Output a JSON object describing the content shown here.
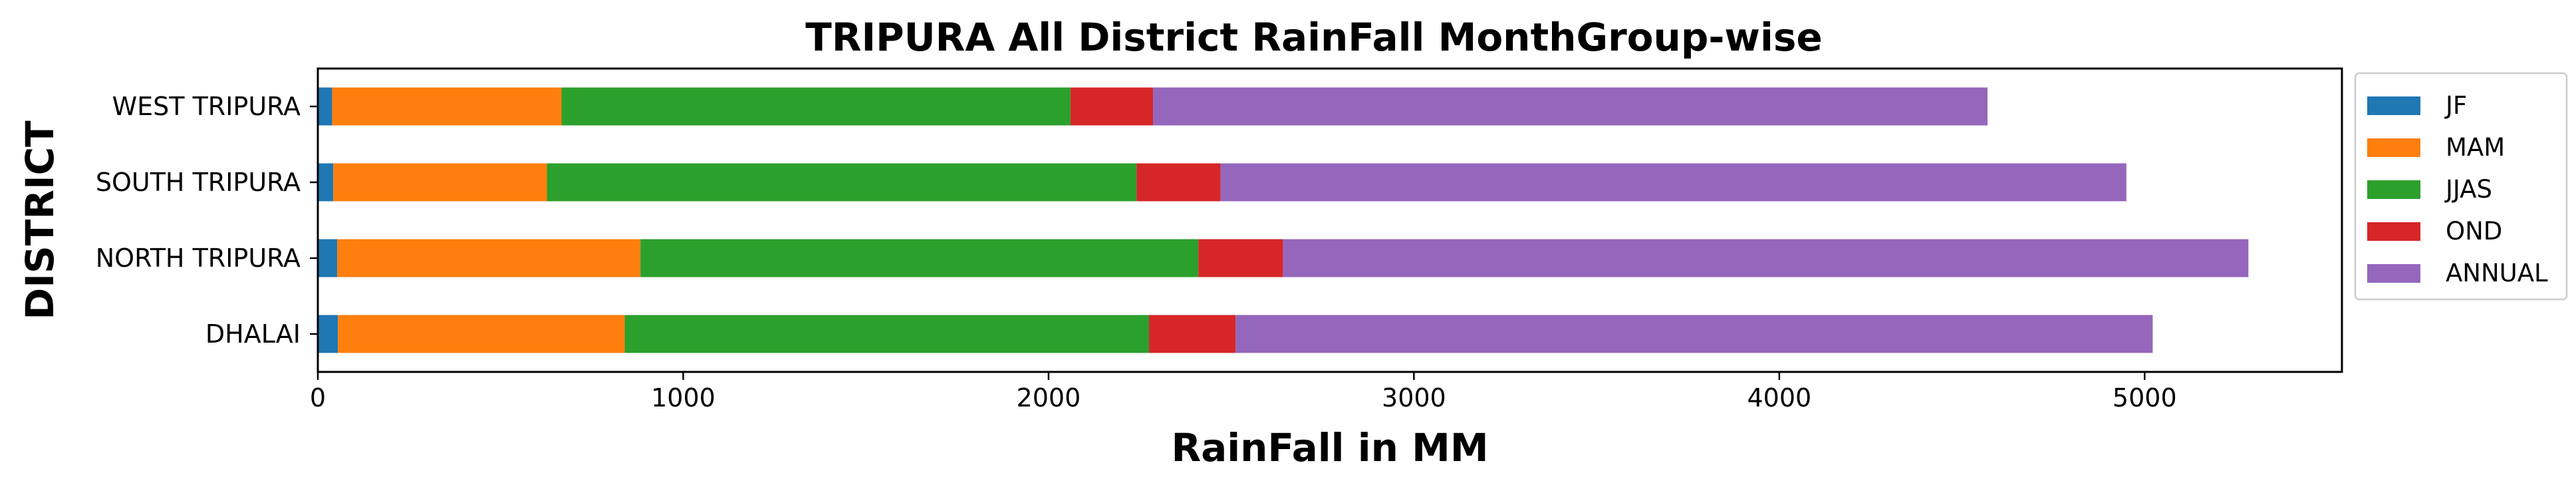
{
  "chart_data": {
    "type": "bar",
    "orientation": "horizontal",
    "stacked": true,
    "title": "TRIPURA All District RainFall MonthGroup-wise",
    "xlabel": "RainFall in MM",
    "ylabel": "DISTRICT",
    "xlim": [
      0,
      5540
    ],
    "x_ticks": [
      0,
      1000,
      2000,
      3000,
      4000,
      5000
    ],
    "categories": [
      "DHALAI",
      "NORTH TRIPURA",
      "SOUTH TRIPURA",
      "WEST TRIPURA"
    ],
    "series": [
      {
        "name": "JF",
        "color": "#1f77b4",
        "values": [
          55,
          53,
          42,
          39
        ]
      },
      {
        "name": "MAM",
        "color": "#ff7f0e",
        "values": [
          785,
          830,
          585,
          628
        ]
      },
      {
        "name": "JJAS",
        "color": "#2ca02c",
        "values": [
          1435,
          1527,
          1614,
          1393
        ]
      },
      {
        "name": "OND",
        "color": "#d62728",
        "values": [
          237,
          232,
          230,
          226
        ]
      },
      {
        "name": "ANNUAL",
        "color": "#9467bd",
        "values": [
          2510,
          2642,
          2479,
          2284
        ]
      }
    ],
    "legend_position": "outside-right",
    "grid": false
  }
}
